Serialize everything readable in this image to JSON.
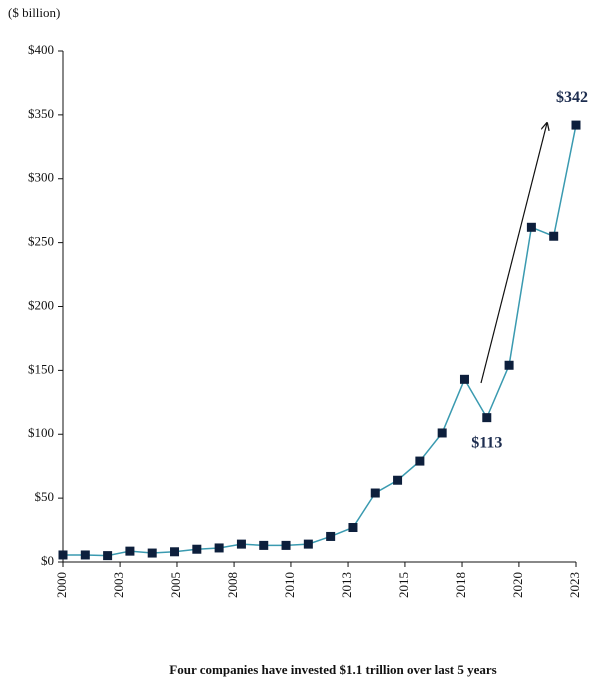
{
  "chart_data": {
    "type": "line",
    "y_label": "($ billion)",
    "footnote": "Four companies have invested $1.1 trillion over last 5 years",
    "x": [
      2000,
      2001,
      2002,
      2003,
      2004,
      2005,
      2006,
      2007,
      2008,
      2009,
      2010,
      2011,
      2012,
      2013,
      2014,
      2015,
      2016,
      2017,
      2018,
      2019,
      2020,
      2021,
      2022,
      2023
    ],
    "values": [
      5.5,
      5.5,
      5,
      8.5,
      7,
      8,
      10,
      11,
      14,
      13,
      13,
      14,
      20,
      27,
      54,
      64,
      79,
      101,
      143,
      113,
      154,
      262,
      255,
      342
    ],
    "value_labels": [
      null,
      null,
      null,
      null,
      null,
      null,
      null,
      null,
      null,
      null,
      null,
      null,
      null,
      null,
      null,
      null,
      null,
      null,
      null,
      "$113",
      null,
      null,
      null,
      "$342"
    ],
    "color": "#3a9ab0",
    "marker_color": "#0d1f3c",
    "xlim": [
      2000,
      2023
    ],
    "xticks": [
      2000,
      {
        "value": 2002.56,
        "label": "2003"
      },
      {
        "value": 2005.11,
        "label": "2005"
      },
      {
        "value": 2007.67,
        "label": "2008"
      },
      {
        "value": 2010.22,
        "label": "2010"
      },
      {
        "value": 2012.78,
        "label": "2013"
      },
      {
        "value": 2015.33,
        "label": "2015"
      },
      {
        "value": 2017.89,
        "label": "2018"
      },
      {
        "value": 2020.44,
        "label": "2020"
      },
      2023
    ],
    "ylim": [
      0,
      400
    ],
    "yticks": [
      {
        "value": 0,
        "label": "$0"
      },
      {
        "value": 50,
        "label": "$50"
      },
      {
        "value": 100,
        "label": "$100"
      },
      {
        "value": 150,
        "label": "$150"
      },
      {
        "value": 200,
        "label": "$200"
      },
      {
        "value": 250,
        "label": "$250"
      },
      {
        "value": 300,
        "label": "$300"
      },
      {
        "value": 350,
        "label": "$350"
      },
      {
        "value": 400,
        "label": "$400"
      }
    ],
    "grid": false
  }
}
